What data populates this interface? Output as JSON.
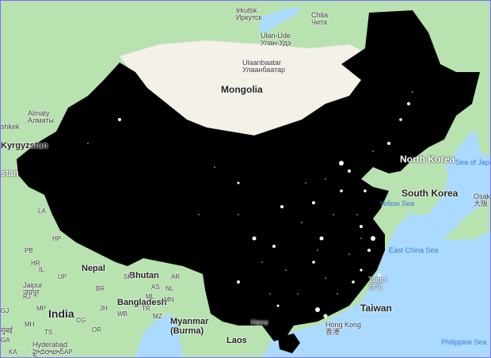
{
  "map": {
    "countries": {
      "mongolia": "Mongolia",
      "kyrgyzstan": "Kyrgyzstan",
      "north_korea": "North Korea",
      "south_korea": "South Korea",
      "nepal": "Nepal",
      "bhutan": "Bhutan",
      "bangladesh": "Bangladesh",
      "india": "India",
      "myanmar": "Myanmar",
      "myanmar_alt": "(Burma)",
      "laos": "Laos",
      "taiwan": "Taiwan",
      "stan_fragment": "stan"
    },
    "cities": {
      "irkutsk": "Irkutsk",
      "irkutsk_local": "Иркутск",
      "chita": "Chita",
      "chita_local": "Чита",
      "ulan_ude": "Ulan-Ude",
      "ulan_ude_local": "Улан-Удэ",
      "ulaanbaatar": "Ulaanbaatar",
      "ulaanbaatar_local": "Улаанбаатар",
      "almaty": "Almaty",
      "almaty_local": "Алматы",
      "bishkek_fragment": "shkek",
      "jaipur": "Jaipur",
      "jaipur_local": "जयपुर",
      "hyderabad": "Hyderabad",
      "hyderabad_local": "హైదరాబాద్",
      "mumbai_local": "मुंबई",
      "hanoi": "Hano",
      "taipei": "Taipei",
      "taipei_local": "台北",
      "hong_kong": "Hong Kong",
      "hong_kong_local": "香港",
      "osaka": "Osak",
      "osaka_local": "大阪"
    },
    "water": {
      "yellow_sea": "Yellow Sea",
      "east_china_sea": "East China Sea",
      "sea_of_japan": "Sea of Japa",
      "philippine_sea": "Philippine Sea"
    },
    "codes": [
      "LA",
      "PB",
      "HP",
      "HR",
      "UP",
      "RJ",
      "GJ",
      "MP",
      "BR",
      "JH",
      "WB",
      "CG",
      "OR",
      "MH",
      "TS",
      "AP",
      "KA",
      "GA",
      "SK",
      "AS",
      "ML",
      "NL",
      "MN",
      "TR",
      "MZ",
      "AR",
      "IL"
    ],
    "colors": {
      "ocean": "#aadaff",
      "land": "#b8e2b0",
      "desert": "#f4f1e8",
      "overlay": "#000000",
      "lights": "#ffffff"
    }
  }
}
